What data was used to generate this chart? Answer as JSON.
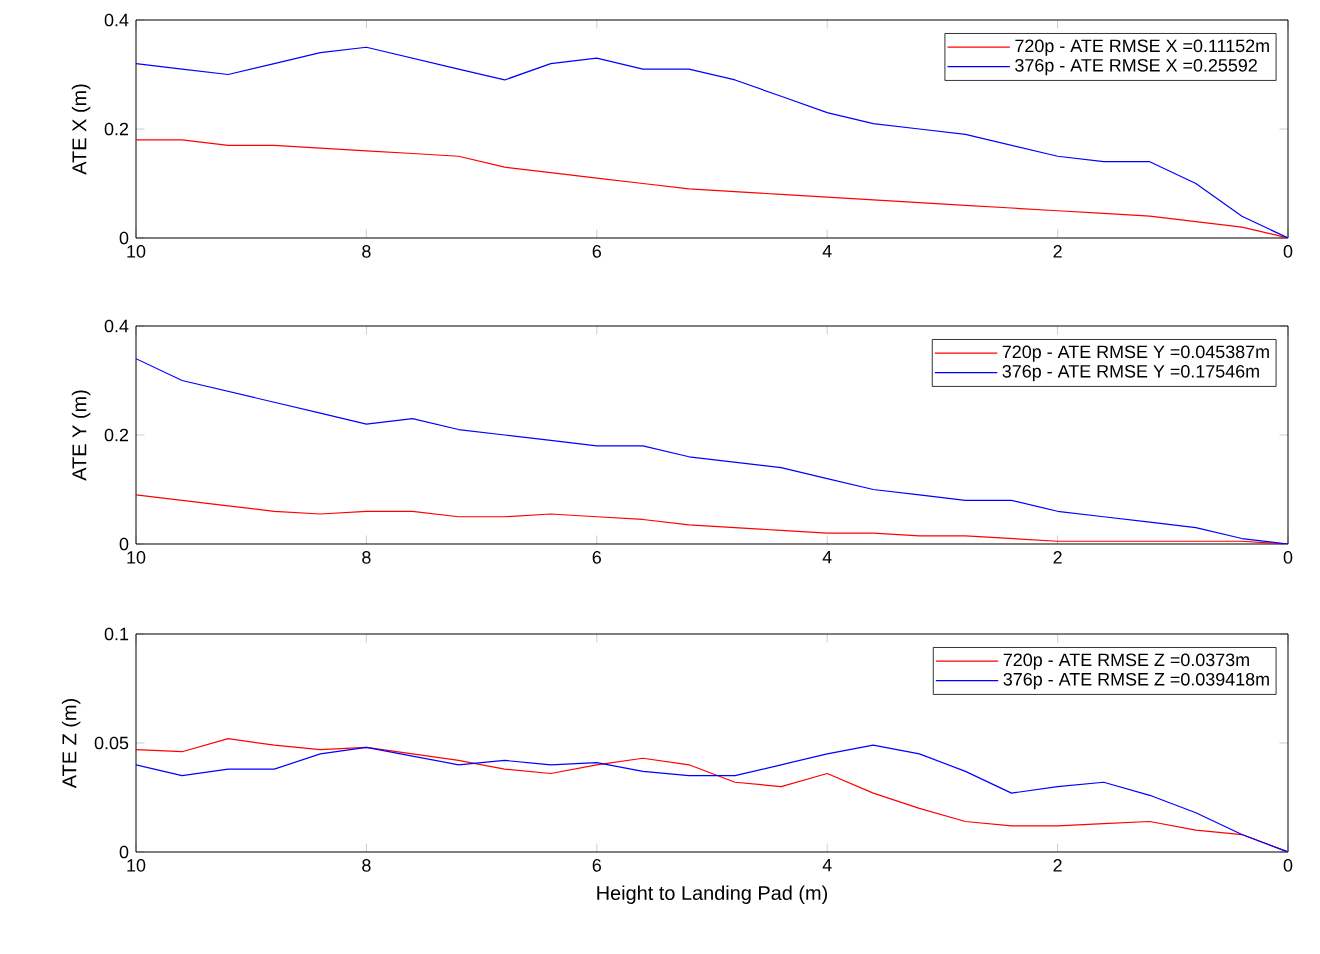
{
  "chart_data": [
    {
      "type": "line",
      "ylabel": "ATE X (m)",
      "x": [
        10,
        9.6,
        9.2,
        8.8,
        8.4,
        8.0,
        7.6,
        7.2,
        6.8,
        6.4,
        6.0,
        5.6,
        5.2,
        4.8,
        4.4,
        4.0,
        3.6,
        3.2,
        2.8,
        2.4,
        2.0,
        1.6,
        1.2,
        0.8,
        0.4,
        0
      ],
      "xlim": [
        10,
        0
      ],
      "xticks": [
        10,
        8,
        6,
        4,
        2,
        0
      ],
      "ylim": [
        0,
        0.4
      ],
      "yticks": [
        0,
        0.2,
        0.4
      ],
      "legend": "top right",
      "series": [
        {
          "name": "720p - ATE RMSE X =0.11152m",
          "color": "#ff0000",
          "values": [
            0.18,
            0.18,
            0.17,
            0.17,
            0.165,
            0.16,
            0.155,
            0.15,
            0.13,
            0.12,
            0.11,
            0.1,
            0.09,
            0.085,
            0.08,
            0.075,
            0.07,
            0.065,
            0.06,
            0.055,
            0.05,
            0.045,
            0.04,
            0.03,
            0.02,
            0
          ]
        },
        {
          "name": "376p - ATE RMSE X =0.25592",
          "color": "#0000ff",
          "values": [
            0.32,
            0.31,
            0.3,
            0.32,
            0.34,
            0.35,
            0.33,
            0.31,
            0.29,
            0.32,
            0.33,
            0.31,
            0.31,
            0.29,
            0.26,
            0.23,
            0.21,
            0.2,
            0.19,
            0.17,
            0.15,
            0.14,
            0.14,
            0.1,
            0.04,
            0
          ]
        }
      ]
    },
    {
      "type": "line",
      "ylabel": "ATE Y (m)",
      "x": [
        10,
        9.6,
        9.2,
        8.8,
        8.4,
        8.0,
        7.6,
        7.2,
        6.8,
        6.4,
        6.0,
        5.6,
        5.2,
        4.8,
        4.4,
        4.0,
        3.6,
        3.2,
        2.8,
        2.4,
        2.0,
        1.6,
        1.2,
        0.8,
        0.4,
        0
      ],
      "xlim": [
        10,
        0
      ],
      "xticks": [
        10,
        8,
        6,
        4,
        2,
        0
      ],
      "ylim": [
        0,
        0.4
      ],
      "yticks": [
        0,
        0.2,
        0.4
      ],
      "legend": "top right",
      "series": [
        {
          "name": "720p - ATE RMSE Y =0.045387m",
          "color": "#ff0000",
          "values": [
            0.09,
            0.08,
            0.07,
            0.06,
            0.055,
            0.06,
            0.06,
            0.05,
            0.05,
            0.055,
            0.05,
            0.045,
            0.035,
            0.03,
            0.025,
            0.02,
            0.02,
            0.015,
            0.015,
            0.01,
            0.005,
            0.005,
            0.005,
            0.005,
            0.005,
            0
          ]
        },
        {
          "name": "376p - ATE RMSE Y =0.17546m",
          "color": "#0000ff",
          "values": [
            0.34,
            0.3,
            0.28,
            0.26,
            0.24,
            0.22,
            0.23,
            0.21,
            0.2,
            0.19,
            0.18,
            0.18,
            0.16,
            0.15,
            0.14,
            0.12,
            0.1,
            0.09,
            0.08,
            0.08,
            0.06,
            0.05,
            0.04,
            0.03,
            0.01,
            0
          ]
        }
      ]
    },
    {
      "type": "line",
      "ylabel": "ATE Z (m)",
      "xlabel": "Height to Landing Pad (m)",
      "x": [
        10,
        9.6,
        9.2,
        8.8,
        8.4,
        8.0,
        7.6,
        7.2,
        6.8,
        6.4,
        6.0,
        5.6,
        5.2,
        4.8,
        4.4,
        4.0,
        3.6,
        3.2,
        2.8,
        2.4,
        2.0,
        1.6,
        1.2,
        0.8,
        0.4,
        0
      ],
      "xlim": [
        10,
        0
      ],
      "xticks": [
        10,
        8,
        6,
        4,
        2,
        0
      ],
      "ylim": [
        0,
        0.1
      ],
      "yticks": [
        0,
        0.05,
        0.1
      ],
      "legend": "top right",
      "series": [
        {
          "name": "720p - ATE RMSE Z =0.0373m",
          "color": "#ff0000",
          "values": [
            0.047,
            0.046,
            0.052,
            0.049,
            0.047,
            0.048,
            0.045,
            0.042,
            0.038,
            0.036,
            0.04,
            0.043,
            0.04,
            0.032,
            0.03,
            0.036,
            0.027,
            0.02,
            0.014,
            0.012,
            0.012,
            0.013,
            0.014,
            0.01,
            0.008,
            0
          ]
        },
        {
          "name": "376p - ATE RMSE Z =0.039418m",
          "color": "#0000ff",
          "values": [
            0.04,
            0.035,
            0.038,
            0.038,
            0.045,
            0.048,
            0.044,
            0.04,
            0.042,
            0.04,
            0.041,
            0.037,
            0.035,
            0.035,
            0.04,
            0.045,
            0.049,
            0.045,
            0.037,
            0.027,
            0.03,
            0.032,
            0.026,
            0.018,
            0.008,
            0
          ]
        }
      ]
    }
  ]
}
